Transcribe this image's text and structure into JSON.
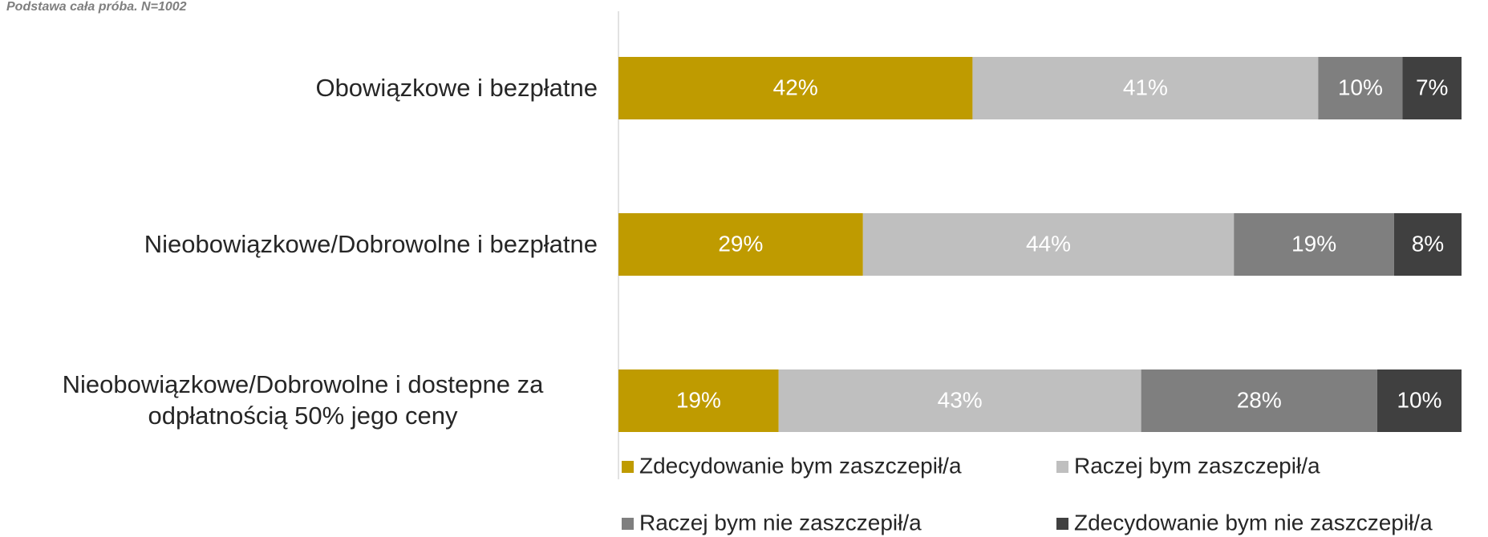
{
  "chart_data": {
    "type": "bar",
    "orientation": "horizontal",
    "stacked": true,
    "subtitle": "Podstawa cała próba. N=1002",
    "categories": [
      "Obowiązkowe i bezpłatne",
      "Nieobowiązkowe/Dobrowolne i bezpłatne",
      "Nieobowiązkowe/Dobrowolne i dostepne za odpłatnością 50% jego ceny"
    ],
    "xlim": [
      0,
      100
    ],
    "series": [
      {
        "name": "Zdecydowanie bym zaszczepił/a",
        "color": "#bf9b00",
        "values": [
          42,
          29,
          19
        ],
        "value_labels": [
          "42%",
          "29%",
          "19%"
        ]
      },
      {
        "name": "Raczej bym zaszczepił/a",
        "color": "#bfbfbf",
        "values": [
          41,
          44,
          43
        ],
        "value_labels": [
          "41%",
          "44%",
          "43%"
        ]
      },
      {
        "name": "Raczej bym nie zaszczepił/a",
        "color": "#7f7f7f",
        "values": [
          10,
          19,
          28
        ],
        "value_labels": [
          "10%",
          "19%",
          "28%"
        ]
      },
      {
        "name": "Zdecydowanie bym nie zaszczepił/a",
        "color": "#404040",
        "values": [
          7,
          8,
          10
        ],
        "value_labels": [
          "7%",
          "8%",
          "10%"
        ]
      }
    ],
    "legend": "bottom"
  }
}
